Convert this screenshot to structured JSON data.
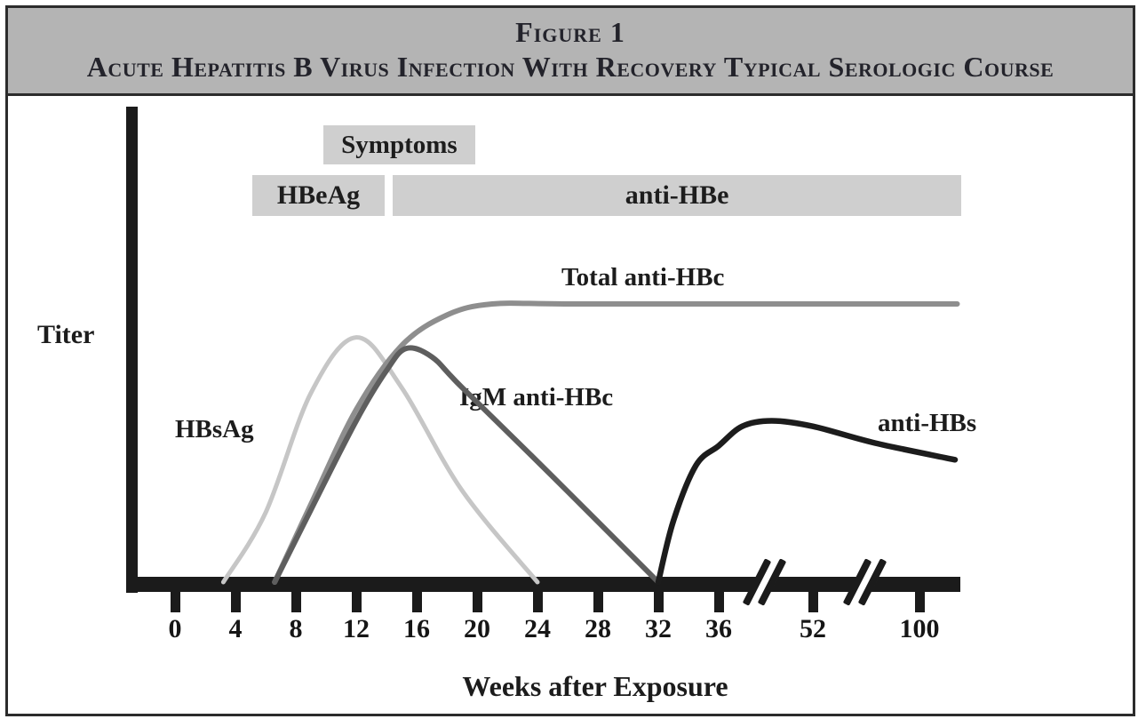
{
  "header": {
    "figure_label": "Figure 1",
    "title": "Acute Hepatitis B Virus Infection With Recovery Typical Serologic Course"
  },
  "chart_data": {
    "type": "line",
    "title": "Acute Hepatitis B Virus Infection With Recovery Typical Serologic Course",
    "xlabel": "Weeks after Exposure",
    "ylabel": "Titer",
    "x_ticks": [
      {
        "week": 0,
        "label": "0"
      },
      {
        "week": 4,
        "label": "4"
      },
      {
        "week": 8,
        "label": "8"
      },
      {
        "week": 12,
        "label": "12"
      },
      {
        "week": 16,
        "label": "16"
      },
      {
        "week": 20,
        "label": "20"
      },
      {
        "week": 24,
        "label": "24"
      },
      {
        "week": 28,
        "label": "28"
      },
      {
        "week": 32,
        "label": "32"
      },
      {
        "week": 36,
        "label": "36"
      },
      {
        "week": 52,
        "label": "52"
      },
      {
        "week": 100,
        "label": "100"
      }
    ],
    "axis_breaks": [
      {
        "between": [
          36,
          52
        ]
      },
      {
        "between": [
          52,
          100
        ]
      }
    ],
    "y_axis_note": "Titer axis unlabeled; values in arbitrary units where Total anti-HBc plateau = 100",
    "grid": false,
    "legend_position": "inline-labels",
    "phase_bands": [
      {
        "label": "Symptoms",
        "start_week": 9.8,
        "end_week": 19.9
      },
      {
        "label": "HBeAg",
        "start_week": 5.1,
        "end_week": 13.9
      },
      {
        "label": "anti-HBe",
        "start_week": 14.4,
        "end_week": 119
      }
    ],
    "series": [
      {
        "name": "HBsAg",
        "color": "#c6c6c6",
        "points": [
          [
            3.2,
            0
          ],
          [
            6,
            25
          ],
          [
            9,
            68
          ],
          [
            12,
            88
          ],
          [
            15,
            70
          ],
          [
            19,
            33
          ],
          [
            24,
            0
          ]
        ]
      },
      {
        "name": "Total anti-HBc",
        "color": "#8e8e8e",
        "points": [
          [
            6.6,
            0
          ],
          [
            9,
            28
          ],
          [
            12,
            62
          ],
          [
            15,
            85
          ],
          [
            18,
            96
          ],
          [
            21,
            100
          ],
          [
            26,
            100
          ],
          [
            40,
            100
          ],
          [
            117,
            100
          ]
        ]
      },
      {
        "name": "IgM anti-HBc",
        "color": "#5e5e5e",
        "points": [
          [
            6.6,
            0
          ],
          [
            9,
            26
          ],
          [
            12,
            58
          ],
          [
            14,
            76
          ],
          [
            15.3,
            84
          ],
          [
            17,
            81
          ],
          [
            19,
            70
          ],
          [
            25,
            38
          ],
          [
            32,
            0
          ]
        ]
      },
      {
        "name": "anti-HBs",
        "color": "#1c1c1c",
        "points": [
          [
            32,
            0
          ],
          [
            33,
            22
          ],
          [
            34.5,
            42
          ],
          [
            36,
            49
          ],
          [
            40,
            56
          ],
          [
            45,
            58
          ],
          [
            52,
            56
          ],
          [
            80,
            50
          ],
          [
            116,
            44
          ]
        ]
      }
    ],
    "colors": {
      "header_background": "#b4b4b4",
      "band_background": "#cfcfcf",
      "axis": "#1b1b1b"
    }
  }
}
